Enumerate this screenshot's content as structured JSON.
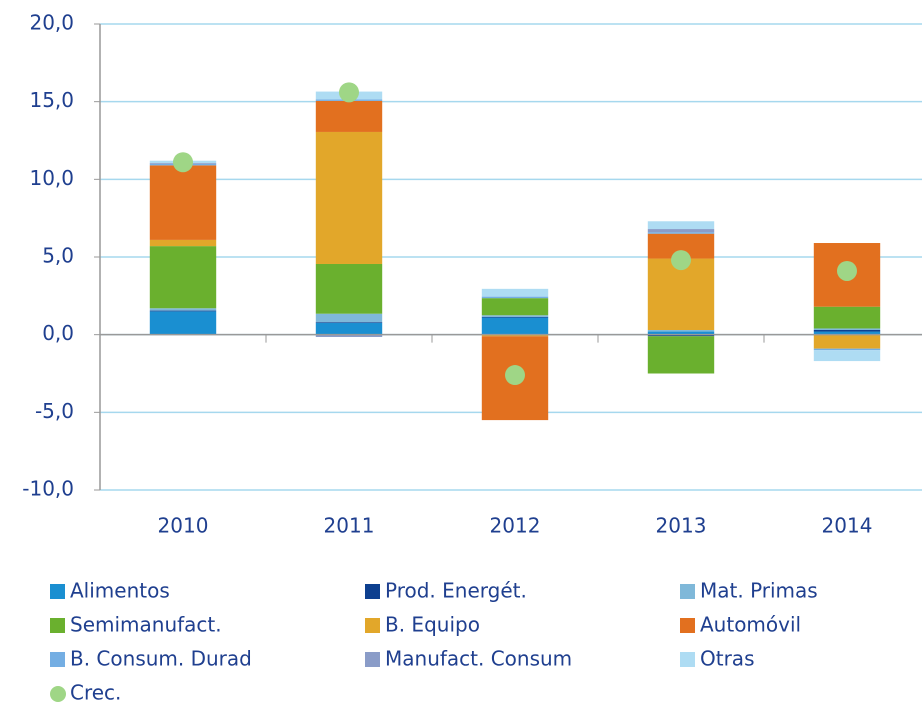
{
  "chart_data": {
    "type": "bar",
    "stacked": true,
    "categories": [
      "2010",
      "2011",
      "2012",
      "2013",
      "2014"
    ],
    "ylim": [
      -10,
      20
    ],
    "yticks": [
      {
        "value": -10,
        "label": "-10,0"
      },
      {
        "value": -5,
        "label": "-5,0"
      },
      {
        "value": 0,
        "label": "0,0"
      },
      {
        "value": 5,
        "label": "5,0"
      },
      {
        "value": 10,
        "label": "10,0"
      },
      {
        "value": 15,
        "label": "15,0"
      },
      {
        "value": 20,
        "label": "20,0"
      }
    ],
    "grid": true,
    "series": [
      {
        "name": "Alimentos",
        "color": "#1a8fd1",
        "values": [
          1.5,
          0.75,
          1.1,
          0.2,
          0.2
        ]
      },
      {
        "name": "Prod. Energét.",
        "color": "#0d3f8f",
        "values": [
          0.05,
          0.05,
          0.05,
          -0.1,
          0.1
        ]
      },
      {
        "name": "Mat. Primas",
        "color": "#7fb8d9",
        "values": [
          0.15,
          0.55,
          0.1,
          0.1,
          0.1
        ]
      },
      {
        "name": "Semimanufact.",
        "color": "#6ab02e",
        "values": [
          4.0,
          3.2,
          1.1,
          -2.4,
          1.4
        ]
      },
      {
        "name": "B. Equipo",
        "color": "#e2a72a",
        "values": [
          0.4,
          8.5,
          -0.1,
          4.6,
          -0.9
        ]
      },
      {
        "name": "Automóvil",
        "color": "#e2701f",
        "values": [
          4.8,
          2.0,
          -5.4,
          1.6,
          4.1
        ]
      },
      {
        "name": "B. Consum. Durad",
        "color": "#74aee3",
        "values": [
          0.1,
          0.1,
          0.1,
          0.1,
          -0.1
        ]
      },
      {
        "name": "Manufact. Consum",
        "color": "#8a9cc8",
        "values": [
          0.05,
          -0.15,
          0.0,
          0.2,
          0.0
        ]
      },
      {
        "name": "Otras",
        "color": "#aedcf3",
        "values": [
          0.15,
          0.5,
          0.5,
          0.5,
          -0.7
        ]
      },
      {
        "name": "Crec.",
        "color": "#9fd686",
        "type": "scatter",
        "values": [
          11.1,
          15.6,
          -2.6,
          4.8,
          4.1
        ]
      }
    ]
  }
}
